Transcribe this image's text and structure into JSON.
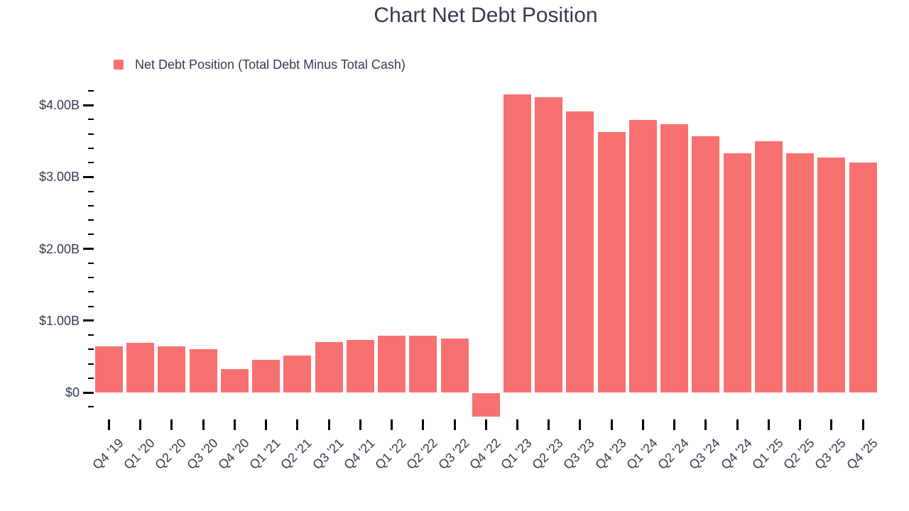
{
  "colors": {
    "bar": "#f87171",
    "text": "#323c4d",
    "tick": "#000000"
  },
  "chart": {
    "title": "Chart Net Debt Position",
    "legend_label": "Net Debt Position (Total Debt Minus Total Cash)"
  },
  "chart_data": {
    "type": "bar",
    "title": "Chart Net Debt Position",
    "legend": [
      "Net Debt Position (Total Debt Minus Total Cash)"
    ],
    "legend_position": "top-left",
    "grid": false,
    "unit": "USD billions",
    "categories": [
      "Q4 '19",
      "Q1 '20",
      "Q2 '20",
      "Q3 '20",
      "Q4 '20",
      "Q1 '21",
      "Q2 '21",
      "Q3 '21",
      "Q4 '21",
      "Q1 '22",
      "Q2 '22",
      "Q3 '22",
      "Q4 '22",
      "Q1 '23",
      "Q2 '23",
      "Q3 '23",
      "Q4 '23",
      "Q1 '24",
      "Q2 '24",
      "Q3 '24",
      "Q4 '24",
      "Q1 '25",
      "Q2 '25",
      "Q3 '25",
      "Q4 '25"
    ],
    "series": [
      {
        "name": "Net Debt Position (Total Debt Minus Total Cash)",
        "values": [
          0.64,
          0.69,
          0.64,
          0.6,
          0.33,
          0.45,
          0.51,
          0.7,
          0.73,
          0.79,
          0.79,
          0.75,
          -0.33,
          4.15,
          4.11,
          3.91,
          3.62,
          3.79,
          3.73,
          3.57,
          3.33,
          3.5,
          3.33,
          3.27,
          3.2
        ]
      }
    ],
    "y_axis": {
      "min": -0.2,
      "max": 4.2,
      "minor_step": 0.2,
      "major_ticks": [
        {
          "value": 0,
          "label": "$0"
        },
        {
          "value": 1,
          "label": "$1.00B"
        },
        {
          "value": 2,
          "label": "$2.00B"
        },
        {
          "value": 3,
          "label": "$3.00B"
        },
        {
          "value": 4,
          "label": "$4.00B"
        }
      ]
    }
  }
}
